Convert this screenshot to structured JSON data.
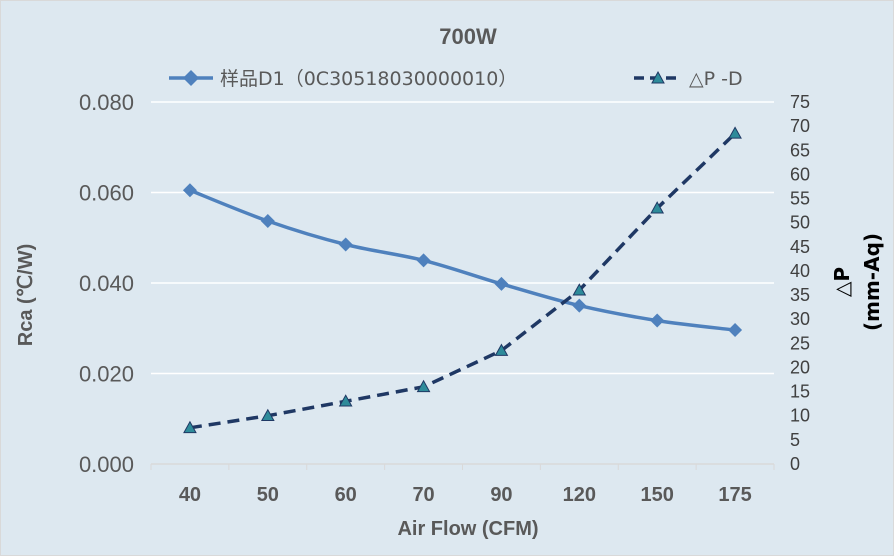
{
  "chart_data": {
    "type": "line",
    "title": "700W",
    "categories": [
      "40",
      "50",
      "60",
      "70",
      "90",
      "120",
      "150",
      "175"
    ],
    "xlabel": "Air Flow (CFM)",
    "ylabel": "Rca (℃/W)",
    "ylim": [
      0,
      0.08
    ],
    "yticks": [
      "0.000",
      "0.020",
      "0.040",
      "0.060",
      "0.080"
    ],
    "y2label_line1": "△P",
    "y2label_line2": "(mm-Aq)",
    "y2lim": [
      0,
      75
    ],
    "y2ticks": [
      "0",
      "5",
      "10",
      "15",
      "20",
      "25",
      "30",
      "35",
      "40",
      "45",
      "50",
      "55",
      "60",
      "65",
      "70",
      "75"
    ],
    "grid": true,
    "legend_position": "top",
    "series": [
      {
        "name": "样品D1（0C30518030000010）",
        "axis": "left",
        "marker": "diamond",
        "style": "solid",
        "color": "#4f81bd",
        "values": [
          0.0605,
          0.0537,
          0.0485,
          0.045,
          0.0398,
          0.035,
          0.0317,
          0.0296
        ]
      },
      {
        "name": "△P -D",
        "axis": "right",
        "marker": "triangle",
        "style": "dashed",
        "color": "#1f3864",
        "values": [
          7.5,
          10,
          13,
          16,
          23.5,
          36,
          53,
          68.5
        ]
      }
    ]
  }
}
